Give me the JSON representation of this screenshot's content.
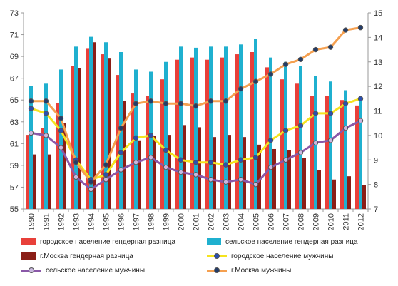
{
  "chart_data": {
    "type": "bar",
    "title": "",
    "categories": [
      "1990",
      "1991",
      "1992",
      "1993",
      "1994",
      "1995",
      "1996",
      "1997",
      "1998",
      "1999",
      "2000",
      "2001",
      "2002",
      "2003",
      "2004",
      "2005",
      "2006",
      "2007",
      "2008",
      "2009",
      "2010",
      "2011",
      "2012"
    ],
    "left_axis": {
      "ylim": [
        55,
        73
      ],
      "ticks": [
        55,
        57,
        59,
        61,
        63,
        65,
        67,
        69,
        71,
        73
      ]
    },
    "right_axis": {
      "ylim": [
        7,
        15
      ],
      "ticks": [
        7,
        8,
        9,
        10,
        11,
        12,
        13,
        14,
        15
      ]
    },
    "grid": false,
    "legend_position": "bottom",
    "series": [
      {
        "name": "городское население гендерная разница",
        "kind": "bar",
        "axis": "left",
        "color": "#e8403a",
        "values": [
          61.8,
          62.4,
          64.7,
          68.1,
          69.7,
          69.2,
          67.3,
          65.6,
          65.4,
          66.9,
          68.7,
          68.9,
          68.7,
          68.9,
          69.2,
          69.4,
          68.0,
          66.9,
          66.5,
          65.4,
          65.4,
          65.0,
          64.5
        ]
      },
      {
        "name": "сельское население гендерная разница",
        "kind": "bar",
        "axis": "left",
        "color": "#1fb0cf",
        "values": [
          66.3,
          66.5,
          67.8,
          69.9,
          70.8,
          70.3,
          69.4,
          67.8,
          67.6,
          68.5,
          69.9,
          69.8,
          69.9,
          69.9,
          70.1,
          70.6,
          68.9,
          68.5,
          68.1,
          67.2,
          66.7,
          65.9,
          65.1
        ]
      },
      {
        "name": "г.Москва гендерная разница",
        "kind": "bar",
        "axis": "left",
        "color": "#8b1e17",
        "values": [
          60.0,
          60.0,
          62.9,
          67.9,
          70.3,
          68.8,
          64.9,
          61.3,
          61.7,
          61.8,
          62.7,
          62.5,
          61.6,
          61.8,
          61.6,
          60.9,
          60.5,
          60.4,
          59.7,
          58.6,
          57.7,
          58.0,
          57.2
        ]
      },
      {
        "name": "городское население мужчины",
        "kind": "line",
        "axis": "right",
        "color": "#f5e31f",
        "marker": "#2a4fb0",
        "values": [
          11.1,
          10.9,
          10.2,
          9.0,
          8.2,
          8.4,
          9.3,
          9.9,
          10.0,
          9.4,
          9.0,
          8.9,
          8.9,
          8.8,
          9.0,
          9.1,
          9.8,
          10.2,
          10.4,
          10.9,
          10.9,
          11.3,
          11.5
        ]
      },
      {
        "name": "сельское население мужчины",
        "kind": "line",
        "axis": "right",
        "color": "#8a58a8",
        "marker": "#c9b7e0",
        "values": [
          10.1,
          10.0,
          9.5,
          8.3,
          7.8,
          8.2,
          8.6,
          8.9,
          9.1,
          8.7,
          8.5,
          8.4,
          8.2,
          8.1,
          8.2,
          8.0,
          8.7,
          9.0,
          9.3,
          9.7,
          9.8,
          10.3,
          10.6
        ]
      },
      {
        "name": "г.Москва мужчины",
        "kind": "line",
        "axis": "right",
        "color": "#f5a050",
        "marker": "#233c68",
        "values": [
          11.4,
          11.4,
          10.7,
          8.9,
          8.1,
          8.8,
          10.3,
          11.3,
          11.4,
          11.3,
          11.3,
          11.2,
          11.4,
          11.4,
          11.9,
          12.2,
          12.5,
          12.9,
          13.1,
          13.5,
          13.6,
          14.3,
          14.4
        ]
      }
    ]
  }
}
